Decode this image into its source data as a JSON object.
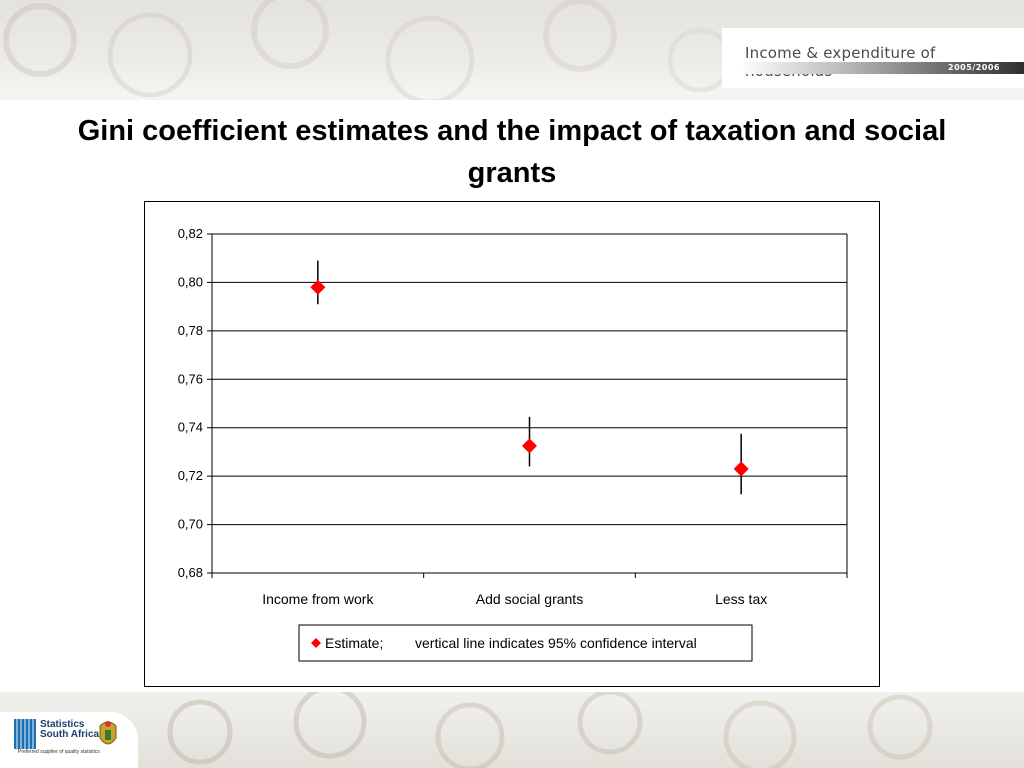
{
  "header": {
    "banner_title": "Income & expenditure of households",
    "banner_year": "2005/2006"
  },
  "page": {
    "title": "Gini coefficient estimates and the impact of taxation and social grants"
  },
  "footer": {
    "logo_line1": "Statistics",
    "logo_line2": "South Africa",
    "logo_tagline": "Preferred supplier of quality statistics"
  },
  "chart_data": {
    "type": "scatter",
    "title": "",
    "xlabel": "",
    "ylabel": "",
    "categories": [
      "Income from work",
      "Add social grants",
      "Less tax"
    ],
    "series": [
      {
        "name": "Estimate;",
        "values": [
          0.798,
          0.7325,
          0.723
        ],
        "ci_low": [
          0.791,
          0.724,
          0.7125
        ],
        "ci_high": [
          0.809,
          0.7445,
          0.7375
        ],
        "color": "#ff0000",
        "marker": "diamond"
      }
    ],
    "ylim": [
      0.68,
      0.82
    ],
    "yticks": [
      0.68,
      0.7,
      0.72,
      0.74,
      0.76,
      0.78,
      0.8,
      0.82
    ],
    "ytick_labels": [
      "0,68",
      "0,70",
      "0,72",
      "0,74",
      "0,76",
      "0,78",
      "0,80",
      "0,82"
    ],
    "grid": true,
    "legend": {
      "position": "bottom",
      "note": "vertical line indicates 95% confidence interval"
    }
  }
}
